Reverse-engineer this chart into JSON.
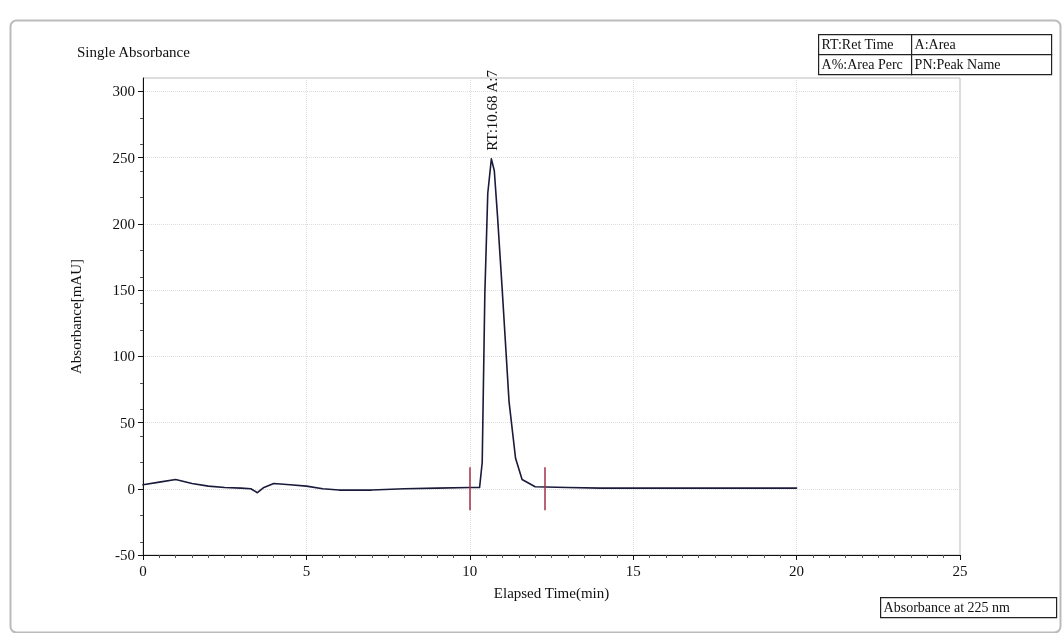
{
  "chart_data": {
    "type": "line",
    "title": "Single Absorbance",
    "xlabel": "Elapsed Time(min)",
    "ylabel": "Absorbance[mAU]",
    "x": [
      0,
      0.5,
      1,
      1.5,
      2,
      2.5,
      3,
      3.3,
      3.5,
      3.7,
      4,
      4.5,
      5,
      5.5,
      6,
      7,
      8,
      9,
      10,
      10.3,
      10.38,
      10.46,
      10.55,
      10.66,
      10.75,
      10.85,
      11,
      11.2,
      11.4,
      11.6,
      12,
      13,
      14,
      15,
      16,
      17,
      18,
      19,
      20
    ],
    "series": [
      {
        "color": "#1a1a3a",
        "values": [
          3,
          5,
          7,
          4,
          2,
          1,
          0.5,
          0,
          -3,
          1,
          4,
          3,
          2,
          0,
          -1,
          -1,
          0,
          0.5,
          1,
          1,
          20,
          147,
          223,
          249,
          240,
          205,
          147,
          66,
          23,
          7,
          1.5,
          1,
          0.5,
          0.5,
          0.5,
          0.5,
          0.5,
          0.5,
          0.5
        ]
      }
    ],
    "xlim": [
      0,
      25
    ],
    "xticks": [
      0,
      5,
      10,
      15,
      20,
      25
    ],
    "ylim": [
      -50,
      310
    ],
    "yticks": [
      -50,
      0,
      50,
      100,
      150,
      200,
      250,
      300
    ],
    "grid": true,
    "marker": "none",
    "line_style": "solid",
    "ref_lines": [
      {
        "axis": "x",
        "value": 10,
        "color": "#a0304a"
      },
      {
        "axis": "x",
        "value": 12.3,
        "color": "#a0304a"
      }
    ],
    "annotations": [
      {
        "text": "RT:10.68 A:7",
        "x": 10.68,
        "y": 249
      },
      "RT:Ret Time",
      "A:Area",
      "A%:Area Perc",
      "PN:Peak Name",
      "Absorbance at 225 nm"
    ]
  }
}
